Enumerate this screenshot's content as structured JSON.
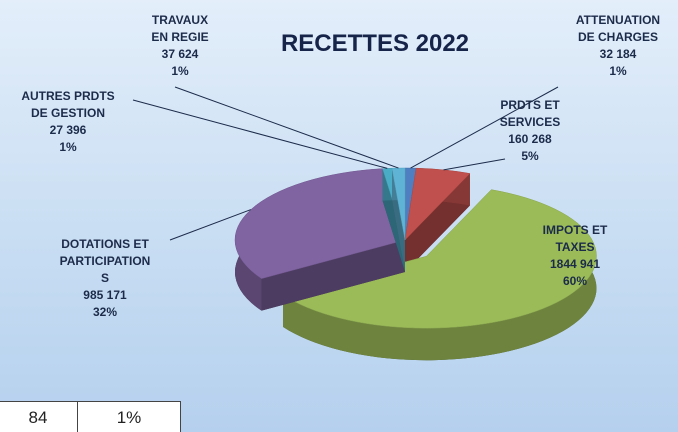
{
  "chart_data": {
    "type": "pie",
    "title": "RECETTES 2022",
    "categories": [
      "ATTENUATION\nDE CHARGES",
      "PRDTS ET\nSERVICES",
      "IMPOTS ET\nTAXES",
      "DOTATIONS ET\nPARTICIPATION\nS",
      "AUTRES PRDTS\nDE GESTION",
      "TRAVAUX\nEN REGIE"
    ],
    "values": [
      32184,
      160268,
      1844941,
      985171,
      27396,
      37624
    ],
    "value_labels": [
      "32 184",
      "160 268",
      "1844 941",
      "985 171",
      "27 396",
      "37 624"
    ],
    "percent_labels": [
      "1%",
      "5%",
      "60%",
      "32%",
      "1%",
      "1%"
    ],
    "colors": [
      "#4f7fc0",
      "#c0504d",
      "#9bbb59",
      "#8064a2",
      "#4bacc6",
      "#5fb4d6"
    ],
    "exploded": [
      false,
      false,
      true,
      false,
      false,
      false
    ]
  },
  "table": {
    "rows": [
      [
        "84",
        "1%"
      ]
    ]
  }
}
